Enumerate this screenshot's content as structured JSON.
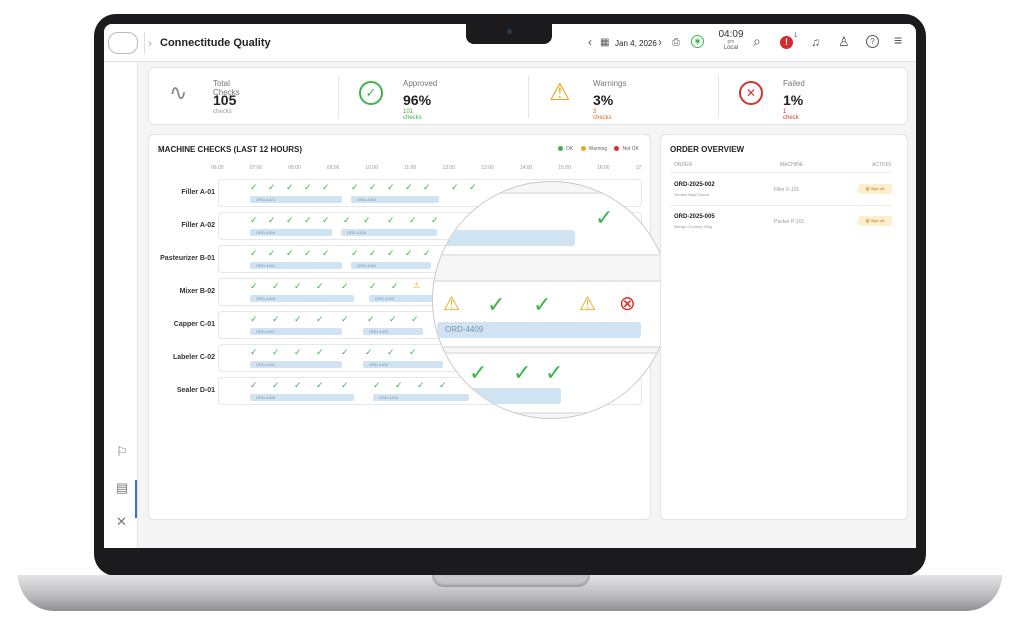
{
  "app": {
    "title": "Connectitude Quality"
  },
  "header": {
    "date": "Jan 4, 2026",
    "time": "04:09",
    "ampm": "pm",
    "timezone": "Local",
    "alert_count": "1",
    "icons": [
      "chevron-left-icon",
      "calendar-icon",
      "chevron-right-icon",
      "printer-icon",
      "signal-icon",
      "search-icon",
      "alert-icon",
      "bell-icon",
      "user-icon",
      "help-icon",
      "menu-icon"
    ]
  },
  "stats": [
    {
      "label": "Total Checks",
      "value": "105",
      "sub": "checks",
      "icon": "pulse-icon",
      "color": "#888888"
    },
    {
      "label": "Approved",
      "value": "96%",
      "sub": "101 checks",
      "icon": "check-circle-icon",
      "color": "#3db54a"
    },
    {
      "label": "Warnings",
      "value": "3%",
      "sub": "3 checks",
      "icon": "warning-icon",
      "color": "#e6a817"
    },
    {
      "label": "Failed",
      "value": "1%",
      "sub": "1 check",
      "icon": "x-circle-icon",
      "color": "#d9302c"
    }
  ],
  "machine_checks": {
    "title": "MACHINE CHECKS (LAST 12 HOURS)",
    "legend": [
      {
        "label": "OK",
        "color": "#3db54a"
      },
      {
        "label": "Warning",
        "color": "#e6a817"
      },
      {
        "label": "Not OK",
        "color": "#d9302c"
      }
    ],
    "hours": [
      "06:00",
      "07:00",
      "08:00",
      "09:00",
      "10:00",
      "11:00",
      "12:00",
      "13:00",
      "14:00",
      "15:00",
      "16:00",
      "17:"
    ],
    "machines": [
      "Filler A-01",
      "Filler A-02",
      "Pasteurizer B-01",
      "Mixer B-02",
      "Capper C-01",
      "Labeler C-02",
      "Sealer D-01"
    ],
    "orders": [
      [
        "ORD-4421",
        "ORD-4402"
      ],
      [
        "ORD-4404",
        "ORD-4405"
      ],
      [
        "ORD-4401",
        "ORD-4402"
      ],
      [
        "ORD-4408",
        "ORD-4409"
      ],
      [
        "ORD-4407",
        "ORD-4403"
      ],
      [
        "ORD-4401",
        "ORD-4402"
      ],
      [
        "ORD-4408",
        "ORD-4405"
      ]
    ],
    "magnified_order": "ORD-4409"
  },
  "order_overview": {
    "title": "ORDER OVERVIEW",
    "columns": [
      "ORDER",
      "MACHINE",
      "ACTION"
    ],
    "rows": [
      {
        "order": "ORD-2025-002",
        "product": "Tomato Basil Sauce",
        "machine": "Filler F-101",
        "action": "Sign off"
      },
      {
        "order": "ORD-2025-005",
        "product": "Mango Chutney 250g",
        "machine": "Packer P-101",
        "action": "Sign off"
      }
    ]
  },
  "sidebar": {
    "items": [
      "flag-icon",
      "dashboard-icon",
      "tools-icon",
      "user-icon"
    ]
  }
}
